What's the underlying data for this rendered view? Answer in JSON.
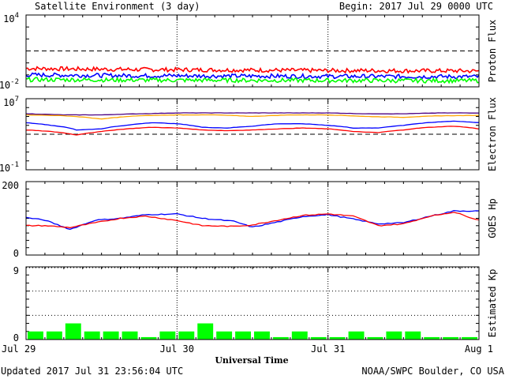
{
  "header": {
    "title": "Satellite Environment (3 day)",
    "begin": "Begin:  2017 Jul 29 0000 UTC"
  },
  "footer": {
    "updated": "Updated 2017 Jul 31 23:56:04 UTC",
    "credit": "NOAA/SWPC Boulder, CO USA"
  },
  "colors": {
    "red": "#ff0000",
    "blue": "#0000ff",
    "green": "#00ff00",
    "orange": "#ffa500",
    "purple": "#4b0082",
    "black": "#000000"
  },
  "chart_data": {
    "type": "line",
    "xlabel": "Universal Time",
    "x_ticks": [
      "Jul 29",
      "Jul 30",
      "Jul 31",
      "Aug 1"
    ],
    "x_range_hours": [
      0,
      72
    ],
    "panels": [
      {
        "id": "proton",
        "ylabel": "Proton Flux",
        "yscale": "log",
        "ylim": [
          0.01,
          10000
        ],
        "y_tick_labels": [
          {
            "base": "10",
            "exp": "4"
          },
          {
            "base": "10",
            "exp": "-2"
          }
        ],
        "threshold": 10,
        "series": [
          {
            "color": "red",
            "x": [
              0,
              6,
              12,
              18,
              24,
              30,
              36,
              42,
              48,
              54,
              60,
              66,
              72
            ],
            "y": [
              0.35,
              0.32,
              0.3,
              0.28,
              0.27,
              0.26,
              0.25,
              0.24,
              0.23,
              0.23,
              0.22,
              0.22,
              0.21
            ]
          },
          {
            "color": "blue",
            "x": [
              0,
              6,
              12,
              18,
              24,
              30,
              36,
              42,
              48,
              54,
              60,
              66,
              72
            ],
            "y": [
              0.1,
              0.095,
              0.09,
              0.085,
              0.085,
              0.08,
              0.08,
              0.078,
              0.075,
              0.075,
              0.073,
              0.072,
              0.07
            ]
          },
          {
            "color": "green",
            "x": [
              0,
              6,
              12,
              18,
              24,
              30,
              36,
              42,
              48,
              54,
              60,
              66,
              72
            ],
            "y": [
              0.04,
              0.04,
              0.038,
              0.037,
              0.036,
              0.036,
              0.035,
              0.035,
              0.034,
              0.034,
              0.033,
              0.033,
              0.033
            ]
          }
        ]
      },
      {
        "id": "electron",
        "ylabel": "Electron Flux",
        "yscale": "log",
        "ylim": [
          0.1,
          10000000
        ],
        "y_tick_labels": [
          {
            "base": "10",
            "exp": "7"
          },
          {
            "base": "10",
            "exp": "-1"
          }
        ],
        "threshold": 1000,
        "series": [
          {
            "color": "purple",
            "x": [
              0,
              6,
              12,
              18,
              24,
              30,
              36,
              42,
              48,
              54,
              60,
              66,
              72
            ],
            "y": [
              200000,
              150000,
              150000,
              200000,
              250000,
              250000,
              250000,
              250000,
              250000,
              200000,
              200000,
              250000,
              250000
            ]
          },
          {
            "color": "orange",
            "x": [
              0,
              6,
              12,
              18,
              24,
              30,
              36,
              42,
              48,
              54,
              60,
              66,
              72
            ],
            "y": [
              150000,
              120000,
              50000,
              120000,
              150000,
              150000,
              100000,
              150000,
              150000,
              100000,
              80000,
              120000,
              130000
            ]
          },
          {
            "color": "blue",
            "x": [
              0,
              4,
              8,
              12,
              16,
              20,
              24,
              28,
              32,
              36,
              40,
              44,
              48,
              52,
              56,
              60,
              64,
              68,
              72
            ],
            "y": [
              20000,
              10000,
              3000,
              4000,
              10000,
              20000,
              15000,
              6000,
              5000,
              8000,
              15000,
              15000,
              10000,
              5000,
              5000,
              10000,
              20000,
              30000,
              20000
            ]
          },
          {
            "color": "red",
            "x": [
              0,
              4,
              8,
              12,
              16,
              20,
              24,
              28,
              32,
              36,
              40,
              44,
              48,
              52,
              56,
              60,
              64,
              68,
              72
            ],
            "y": [
              3000,
              2000,
              800,
              2000,
              4000,
              6000,
              5000,
              3000,
              2500,
              3000,
              4000,
              5000,
              4000,
              2000,
              1500,
              3000,
              6000,
              8000,
              4000
            ]
          }
        ]
      },
      {
        "id": "goes-hp",
        "ylabel": "GOES Hp",
        "yscale": "linear",
        "ylim": [
          0,
          200
        ],
        "y_tick_labels": [
          {
            "base": "200",
            "exp": ""
          },
          {
            "base": "0",
            "exp": ""
          }
        ],
        "series": [
          {
            "color": "blue",
            "x": [
              0,
              3,
              7,
              11,
              15,
              19,
              24,
              28,
              33,
              36,
              40,
              44,
              48,
              52,
              56,
              60,
              64,
              68,
              72
            ],
            "y": [
              102,
              95,
              70,
              95,
              100,
              110,
              112,
              100,
              92,
              76,
              90,
              105,
              110,
              98,
              85,
              88,
              105,
              120,
              120
            ]
          },
          {
            "color": "red",
            "x": [
              0,
              3,
              7,
              11,
              15,
              19,
              24,
              28,
              33,
              36,
              40,
              44,
              48,
              52,
              56,
              60,
              64,
              68,
              72
            ],
            "y": [
              80,
              80,
              75,
              88,
              100,
              106,
              94,
              80,
              78,
              82,
              95,
              108,
              112,
              106,
              80,
              85,
              105,
              117,
              95
            ]
          }
        ]
      },
      {
        "id": "kp",
        "ylabel": "Estimated Kp",
        "yscale": "linear",
        "ylim": [
          0,
          9
        ],
        "y_tick_labels": [
          {
            "base": "9",
            "exp": ""
          },
          {
            "base": "0",
            "exp": ""
          }
        ],
        "bars": {
          "color": "green",
          "width_hours": 3,
          "x": [
            0,
            3,
            6,
            9,
            12,
            15,
            18,
            21,
            24,
            27,
            30,
            33,
            36,
            39,
            42,
            45,
            48,
            51,
            54,
            57,
            60,
            63,
            66,
            69
          ],
          "values": [
            1,
            1,
            2,
            1,
            1,
            1,
            0.3,
            1,
            1,
            2,
            1,
            1,
            1,
            0.3,
            1,
            0.3,
            0.3,
            1,
            0.3,
            1,
            1,
            0.3,
            0.3,
            0.3
          ]
        }
      }
    ]
  }
}
